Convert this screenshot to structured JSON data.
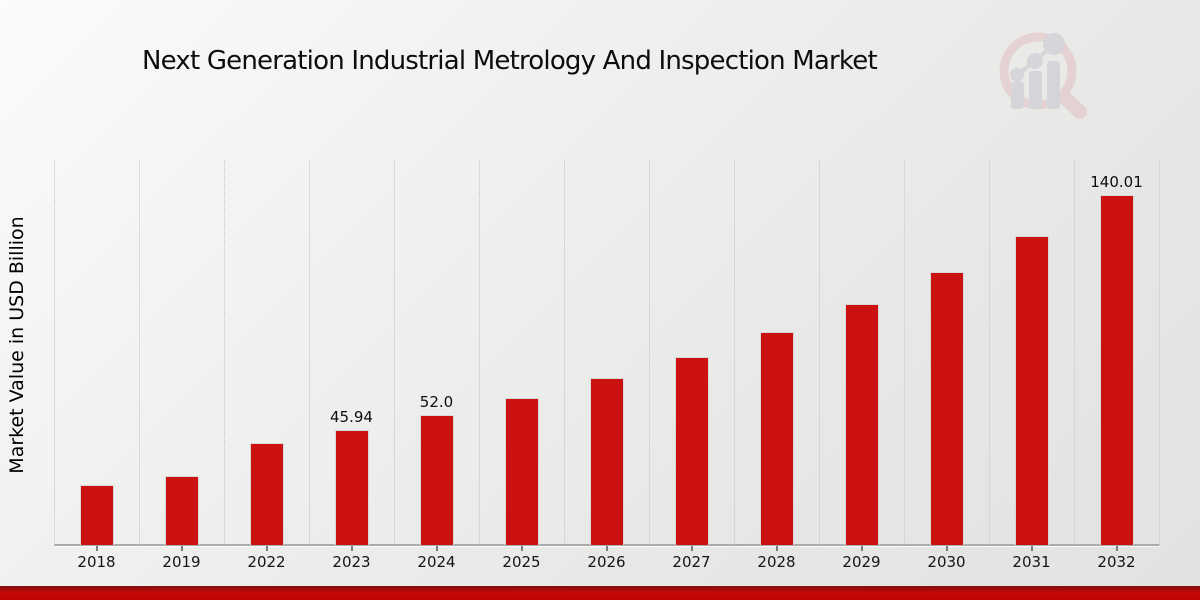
{
  "chart_data": {
    "type": "bar",
    "title": "Next Generation Industrial Metrology And Inspection Market",
    "ylabel": "Market Value in USD Billion",
    "xlabel": "",
    "categories": [
      "2018",
      "2019",
      "2022",
      "2023",
      "2024",
      "2025",
      "2026",
      "2027",
      "2028",
      "2029",
      "2030",
      "2031",
      "2032"
    ],
    "values": [
      23.9,
      27.6,
      40.6,
      45.94,
      52.0,
      58.85,
      66.61,
      75.39,
      85.32,
      96.57,
      109.3,
      123.7,
      140.01
    ],
    "value_labels": [
      "",
      "",
      "",
      "45.94",
      "52.0",
      "",
      "",
      "",
      "",
      "",
      "",
      "",
      "140.01"
    ],
    "ylim": [
      0,
      154
    ],
    "bar_color": "#cc1111",
    "grid": "vertical-dotted",
    "gridline_color": "#c3c3c3",
    "legend": "none"
  },
  "branding": {
    "logo_icon": "magnifier-growth-chart-icon",
    "logo_ring_color": "#e2bfc2",
    "logo_chart_color": "#c5c5cf"
  },
  "footer": {
    "band_color": "#c30707"
  }
}
